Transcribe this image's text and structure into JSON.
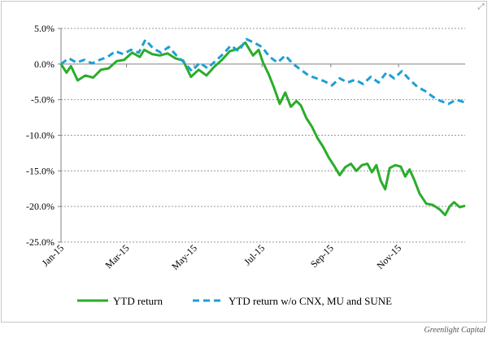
{
  "ui": {
    "expand_icon": "expand-icon",
    "credit": "Greenlight Capital"
  },
  "chart_data": {
    "type": "line",
    "title": "",
    "xlabel": "",
    "ylabel": "",
    "x_ticks": [
      "Jan-15",
      "Mar-15",
      "May-15",
      "Jul-15",
      "Sep-15",
      "Nov-15"
    ],
    "y_ticks": [
      "5.0%",
      "0.0%",
      "-5.0%",
      "-10.0%",
      "-15.0%",
      "-20.0%",
      "-25.0%"
    ],
    "ylim": [
      -25,
      5
    ],
    "xlim": [
      "2015-01-01",
      "2015-12-31"
    ],
    "grid": "horizontal dotted",
    "legend": "bottom",
    "series": [
      {
        "name": "YTD return",
        "color": "#2aad2a",
        "style": "solid",
        "points": [
          [
            "2015-01-01",
            0.0
          ],
          [
            "2015-01-06",
            -1.2
          ],
          [
            "2015-01-10",
            -0.3
          ],
          [
            "2015-01-16",
            -2.3
          ],
          [
            "2015-01-23",
            -1.6
          ],
          [
            "2015-01-30",
            -1.9
          ],
          [
            "2015-02-06",
            -0.8
          ],
          [
            "2015-02-13",
            -0.6
          ],
          [
            "2015-02-20",
            0.4
          ],
          [
            "2015-02-27",
            0.6
          ],
          [
            "2015-03-06",
            1.6
          ],
          [
            "2015-03-13",
            1.0
          ],
          [
            "2015-03-17",
            2.0
          ],
          [
            "2015-03-24",
            1.4
          ],
          [
            "2015-03-31",
            1.2
          ],
          [
            "2015-04-07",
            1.5
          ],
          [
            "2015-04-14",
            0.8
          ],
          [
            "2015-04-21",
            0.5
          ],
          [
            "2015-04-28",
            -1.8
          ],
          [
            "2015-05-05",
            -0.8
          ],
          [
            "2015-05-12",
            -1.6
          ],
          [
            "2015-05-19",
            -0.4
          ],
          [
            "2015-05-26",
            0.6
          ],
          [
            "2015-06-02",
            1.8
          ],
          [
            "2015-06-09",
            2.1
          ],
          [
            "2015-06-16",
            3.0
          ],
          [
            "2015-06-23",
            1.2
          ],
          [
            "2015-06-28",
            2.0
          ],
          [
            "2015-07-02",
            0.2
          ],
          [
            "2015-07-07",
            -1.4
          ],
          [
            "2015-07-12",
            -3.4
          ],
          [
            "2015-07-17",
            -5.6
          ],
          [
            "2015-07-22",
            -4.0
          ],
          [
            "2015-07-27",
            -6.0
          ],
          [
            "2015-08-01",
            -5.2
          ],
          [
            "2015-08-05",
            -5.8
          ],
          [
            "2015-08-10",
            -7.6
          ],
          [
            "2015-08-15",
            -8.8
          ],
          [
            "2015-08-20",
            -10.4
          ],
          [
            "2015-08-25",
            -11.6
          ],
          [
            "2015-08-30",
            -13.1
          ],
          [
            "2015-09-04",
            -14.3
          ],
          [
            "2015-09-09",
            -15.6
          ],
          [
            "2015-09-14",
            -14.5
          ],
          [
            "2015-09-19",
            -14.0
          ],
          [
            "2015-09-24",
            -15.0
          ],
          [
            "2015-09-29",
            -14.2
          ],
          [
            "2015-10-04",
            -14.0
          ],
          [
            "2015-10-08",
            -15.2
          ],
          [
            "2015-10-12",
            -14.2
          ],
          [
            "2015-10-16",
            -16.4
          ],
          [
            "2015-10-20",
            -17.6
          ],
          [
            "2015-10-24",
            -14.6
          ],
          [
            "2015-10-29",
            -14.2
          ],
          [
            "2015-11-03",
            -14.4
          ],
          [
            "2015-11-07",
            -15.8
          ],
          [
            "2015-11-11",
            -14.8
          ],
          [
            "2015-11-15",
            -16.2
          ],
          [
            "2015-11-20",
            -18.2
          ],
          [
            "2015-11-26",
            -19.6
          ],
          [
            "2015-12-02",
            -19.8
          ],
          [
            "2015-12-08",
            -20.4
          ],
          [
            "2015-12-13",
            -21.2
          ],
          [
            "2015-12-17",
            -20.0
          ],
          [
            "2015-12-21",
            -19.4
          ],
          [
            "2015-12-26",
            -20.1
          ],
          [
            "2015-12-31",
            -19.9
          ]
        ]
      },
      {
        "name": "YTD return w/o CNX, MU and SUNE",
        "color": "#1e9fd6",
        "style": "dashed",
        "points": [
          [
            "2015-01-01",
            0.0
          ],
          [
            "2015-01-08",
            0.8
          ],
          [
            "2015-01-15",
            0.2
          ],
          [
            "2015-01-22",
            0.6
          ],
          [
            "2015-01-29",
            0.1
          ],
          [
            "2015-02-05",
            0.6
          ],
          [
            "2015-02-12",
            1.0
          ],
          [
            "2015-02-19",
            1.8
          ],
          [
            "2015-02-26",
            1.4
          ],
          [
            "2015-03-05",
            2.0
          ],
          [
            "2015-03-12",
            1.6
          ],
          [
            "2015-03-18",
            3.4
          ],
          [
            "2015-03-25",
            2.2
          ],
          [
            "2015-04-01",
            1.6
          ],
          [
            "2015-04-08",
            2.4
          ],
          [
            "2015-04-15",
            1.2
          ],
          [
            "2015-04-22",
            0.2
          ],
          [
            "2015-04-29",
            -1.0
          ],
          [
            "2015-05-06",
            0.2
          ],
          [
            "2015-05-13",
            -0.6
          ],
          [
            "2015-05-20",
            0.4
          ],
          [
            "2015-05-27",
            1.4
          ],
          [
            "2015-06-03",
            2.6
          ],
          [
            "2015-06-10",
            1.8
          ],
          [
            "2015-06-17",
            3.5
          ],
          [
            "2015-06-24",
            3.0
          ],
          [
            "2015-07-01",
            2.4
          ],
          [
            "2015-07-08",
            1.0
          ],
          [
            "2015-07-15",
            0.2
          ],
          [
            "2015-07-22",
            1.2
          ],
          [
            "2015-07-29",
            0.0
          ],
          [
            "2015-08-05",
            -0.8
          ],
          [
            "2015-08-12",
            -1.6
          ],
          [
            "2015-08-19",
            -2.0
          ],
          [
            "2015-08-26",
            -2.4
          ],
          [
            "2015-09-02",
            -3.0
          ],
          [
            "2015-09-09",
            -2.0
          ],
          [
            "2015-09-16",
            -2.6
          ],
          [
            "2015-09-23",
            -2.2
          ],
          [
            "2015-09-30",
            -2.8
          ],
          [
            "2015-10-07",
            -1.8
          ],
          [
            "2015-10-14",
            -2.6
          ],
          [
            "2015-10-21",
            -1.2
          ],
          [
            "2015-10-28",
            -2.0
          ],
          [
            "2015-11-04",
            -1.0
          ],
          [
            "2015-11-11",
            -2.2
          ],
          [
            "2015-11-18",
            -3.2
          ],
          [
            "2015-11-25",
            -3.8
          ],
          [
            "2015-12-02",
            -4.6
          ],
          [
            "2015-12-09",
            -5.2
          ],
          [
            "2015-12-16",
            -5.6
          ],
          [
            "2015-12-23",
            -5.0
          ],
          [
            "2015-12-31",
            -5.4
          ]
        ]
      }
    ]
  }
}
